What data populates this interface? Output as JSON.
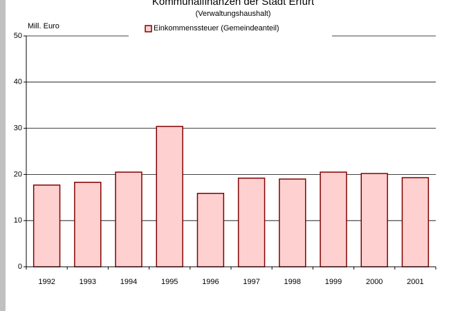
{
  "chart_data": {
    "type": "bar",
    "title": "Kommunalfinanzen der Stadt Erfurt",
    "subtitle": "(Verwaltungshaushalt)",
    "y_label": "Mill. Euro",
    "categories": [
      "1992",
      "1993",
      "1994",
      "1995",
      "1996",
      "1997",
      "1998",
      "1999",
      "2000",
      "2001"
    ],
    "series": [
      {
        "name": "Einkommenssteuer (Gemeindeanteil)",
        "color": "#ffd0d0",
        "edge_color": "#800000",
        "values": [
          17.7,
          18.3,
          20.5,
          30.4,
          15.9,
          19.2,
          19.0,
          20.5,
          20.2,
          19.3
        ]
      }
    ],
    "ylim": [
      0,
      50
    ],
    "yticks": [
      0,
      10,
      20,
      30,
      40,
      50
    ],
    "grid": true,
    "legend": "top"
  }
}
